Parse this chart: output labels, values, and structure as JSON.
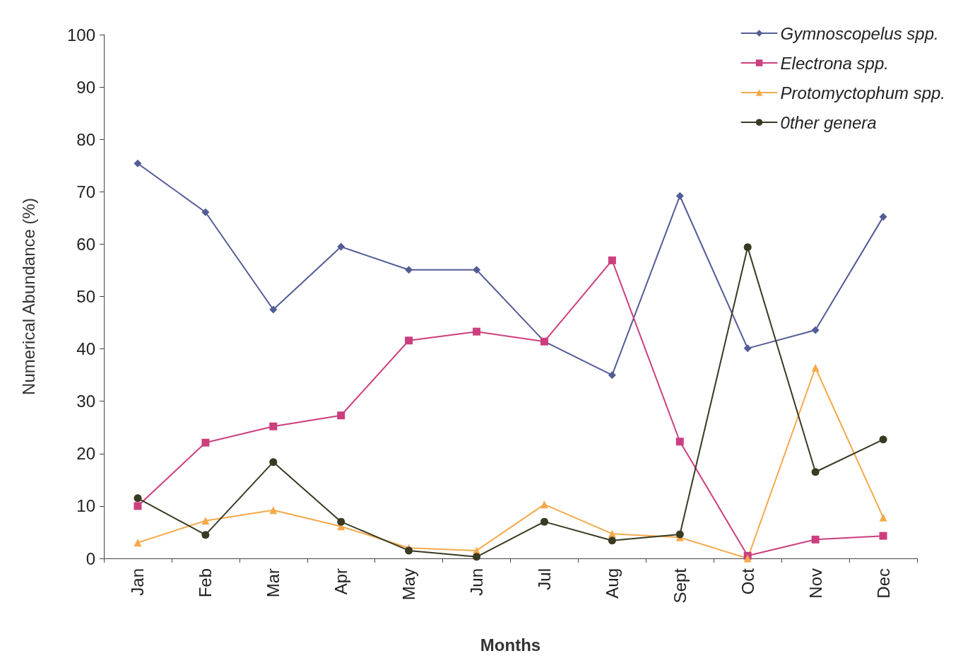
{
  "chart_data": {
    "type": "line",
    "xlabel": "Months",
    "ylabel": "Numerical Abundance (%)",
    "categories": [
      "Jan",
      "Feb",
      "Mar",
      "Apr",
      "May",
      "Jun",
      "Jul",
      "Aug",
      "Sept",
      "Oct",
      "Nov",
      "Dec"
    ],
    "series": [
      {
        "name": "Gymnoscopelus spp.",
        "color": "#545c96",
        "marker": "diamond",
        "values": [
          75.4,
          66.1,
          47.5,
          59.5,
          55.1,
          55.1,
          41.4,
          35.0,
          69.2,
          40.1,
          43.6,
          65.2
        ]
      },
      {
        "name": "Electrona spp.",
        "color": "#cc3f7f",
        "marker": "square",
        "values": [
          10.0,
          22.1,
          25.2,
          27.3,
          41.6,
          43.3,
          41.4,
          56.9,
          22.3,
          0.5,
          3.6,
          4.3
        ]
      },
      {
        "name": "Protomyctophum spp.",
        "color": "#f5a94a",
        "marker": "triangle",
        "values": [
          3.0,
          7.2,
          9.2,
          6.1,
          2.0,
          1.5,
          10.3,
          4.7,
          4.0,
          0,
          36.4,
          7.8
        ]
      },
      {
        "name": "0ther genera",
        "color": "#3a3a22",
        "marker": "circle",
        "values": [
          11.5,
          4.5,
          18.4,
          7.0,
          1.5,
          0.3,
          7.0,
          3.4,
          4.6,
          59.4,
          16.5,
          22.7
        ]
      }
    ],
    "ylim": [
      0,
      100
    ],
    "yticks": [
      0,
      10,
      20,
      30,
      40,
      50,
      60,
      70,
      80,
      90,
      100
    ],
    "grid": false,
    "legend": "top right",
    "line_style": "solid"
  }
}
